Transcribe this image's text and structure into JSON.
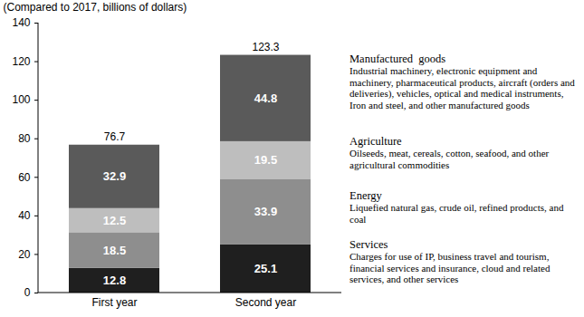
{
  "chart_data": {
    "type": "bar",
    "stacked": true,
    "data_labels": true,
    "grid": false,
    "legend": "right",
    "y_label": "(Compared to 2017, billions of dollars)",
    "categories": [
      "First year",
      "Second year"
    ],
    "ylim": [
      0,
      140
    ],
    "yticks": [
      0,
      20,
      40,
      60,
      80,
      100,
      120,
      140
    ],
    "totals": [
      76.7,
      123.3
    ],
    "series": [
      {
        "name": "Services",
        "color": "#1f1f1f",
        "values": [
          12.8,
          25.1
        ],
        "description": "Charges for use of IP, business travel and tourism, financial services and insurance, cloud and related services, and other services"
      },
      {
        "name": "Energy",
        "color": "#8e8e8e",
        "values": [
          18.5,
          33.9
        ],
        "description": "Liquefied natural gas, crude oil, refined products, and coal"
      },
      {
        "name": "Agriculture",
        "color": "#bebebe",
        "values": [
          12.5,
          19.5
        ],
        "description": "Oilseeds, meat, cereals, cotton, seafood, and other agricultural commodities"
      },
      {
        "name": "Manufactured  goods",
        "color": "#5a5a5a",
        "values": [
          32.9,
          44.8
        ],
        "description": "Industrial machinery, electronic equipment and machinery, pharmaceutical products, aircraft (orders and deliveries), vehicles, optical and medical instruments, Iron and steel, and other manufactured goods"
      }
    ]
  }
}
